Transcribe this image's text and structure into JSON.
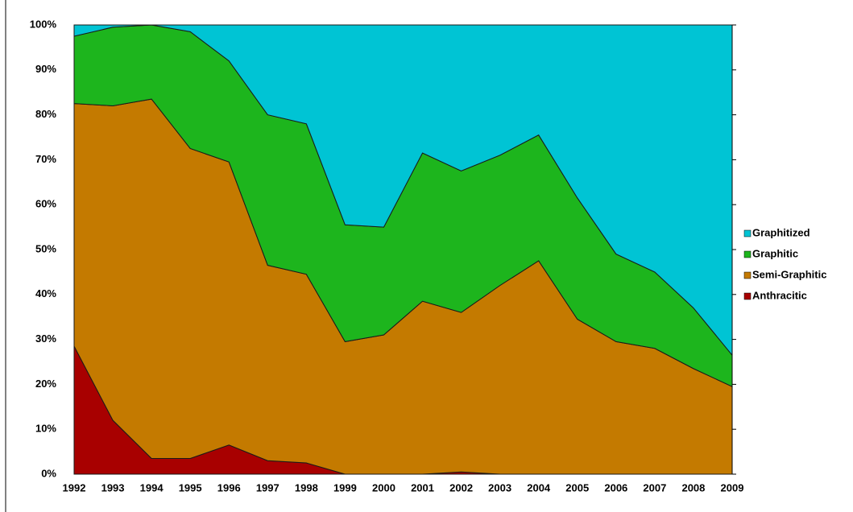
{
  "chart_data": {
    "type": "stacked_area",
    "categories": [
      "1992",
      "1993",
      "1994",
      "1995",
      "1996",
      "1997",
      "1998",
      "1999",
      "2000",
      "2001",
      "2002",
      "2003",
      "2004",
      "2005",
      "2006",
      "2007",
      "2008",
      "2009"
    ],
    "series": [
      {
        "name": "Anthracitic",
        "color": "#a80000",
        "values": [
          28.5,
          12,
          3.5,
          3.5,
          6.5,
          3,
          2.5,
          0,
          0,
          0,
          0.5,
          0,
          0,
          0,
          0,
          0,
          0,
          0
        ]
      },
      {
        "name": "Semi-Graphitic",
        "color": "#c47a00",
        "values": [
          54,
          70,
          80,
          69,
          63,
          43.5,
          42,
          29.5,
          31,
          38.5,
          35.5,
          42,
          47.5,
          34.5,
          29.5,
          28,
          23.5,
          19.5
        ]
      },
      {
        "name": "Graphitic",
        "color": "#1db51d",
        "values": [
          15,
          17.5,
          16.5,
          26,
          22.5,
          33.5,
          33.5,
          26,
          24,
          33,
          31.5,
          29,
          28,
          27,
          19.5,
          17,
          13.5,
          7
        ]
      },
      {
        "name": "Graphitized",
        "color": "#00c4d4",
        "values": [
          2.5,
          0.5,
          0,
          1.5,
          8,
          20,
          22,
          44.5,
          45,
          28.5,
          32.5,
          29,
          24.5,
          38.5,
          51,
          55,
          63,
          73.5
        ]
      }
    ],
    "ylim": [
      0,
      100
    ],
    "yticks": [
      {
        "value": 0,
        "label": "0%"
      },
      {
        "value": 10,
        "label": "10%"
      },
      {
        "value": 20,
        "label": "20%"
      },
      {
        "value": 30,
        "label": "30%"
      },
      {
        "value": 40,
        "label": "40%"
      },
      {
        "value": 50,
        "label": "50%"
      },
      {
        "value": 60,
        "label": "60%"
      },
      {
        "value": 70,
        "label": "70%"
      },
      {
        "value": 80,
        "label": "80%"
      },
      {
        "value": 90,
        "label": "90%"
      },
      {
        "value": 100,
        "label": "100%"
      }
    ],
    "legend": "right"
  }
}
